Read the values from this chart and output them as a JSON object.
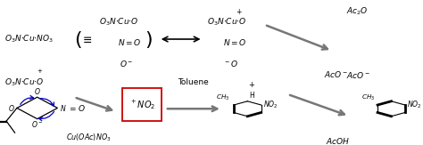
{
  "bg_color": "#ffffff",
  "line_color": "#000000",
  "arrow_color": "#808080",
  "blue_color": "#0000cc",
  "red_color": "#cc0000",
  "fig_width": 4.74,
  "fig_height": 1.63,
  "dpi": 100
}
